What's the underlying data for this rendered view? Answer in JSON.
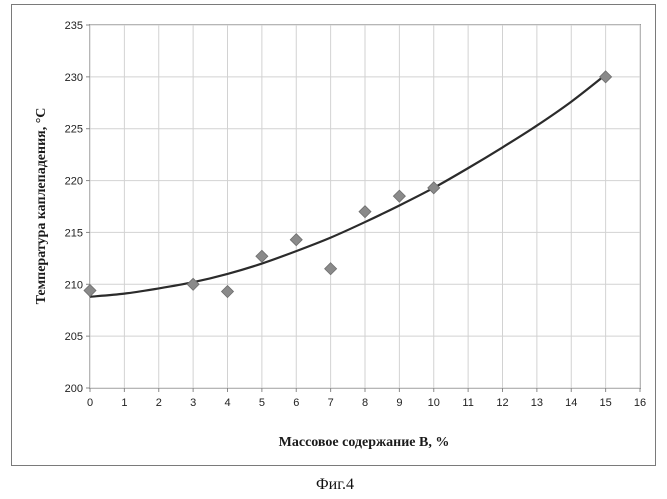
{
  "caption": "Фиг.4",
  "chart_data": {
    "type": "scatter",
    "xlabel": "Массовое содержание  B, %",
    "ylabel": "Температура каплепадения, °C",
    "xlim": [
      0,
      16
    ],
    "ylim": [
      200,
      235
    ],
    "x_ticks": [
      0,
      1,
      2,
      3,
      4,
      5,
      6,
      7,
      8,
      9,
      10,
      11,
      12,
      13,
      14,
      15,
      16
    ],
    "y_ticks": [
      200,
      205,
      210,
      215,
      220,
      225,
      230,
      235
    ],
    "grid": true,
    "marker": "diamond",
    "marker_color": "#8a8a8a",
    "line_color": "#2b2b2b",
    "series": [
      {
        "points": [
          {
            "x": 0,
            "y": 209.4
          },
          {
            "x": 3,
            "y": 210.0
          },
          {
            "x": 4,
            "y": 209.3
          },
          {
            "x": 5,
            "y": 212.7
          },
          {
            "x": 6,
            "y": 214.3
          },
          {
            "x": 7,
            "y": 211.5
          },
          {
            "x": 8,
            "y": 217.0
          },
          {
            "x": 9,
            "y": 218.5
          },
          {
            "x": 10,
            "y": 219.3
          },
          {
            "x": 15,
            "y": 230.0
          }
        ]
      }
    ],
    "trendline": {
      "type": "polynomial",
      "x": [
        0,
        1,
        2,
        3,
        4,
        5,
        6,
        7,
        8,
        9,
        10,
        11,
        12,
        13,
        14,
        15
      ],
      "y": [
        208.8,
        209.1,
        209.6,
        210.2,
        211.0,
        212.0,
        213.2,
        214.5,
        216.0,
        217.6,
        219.3,
        221.2,
        223.2,
        225.3,
        227.6,
        230.2
      ]
    }
  }
}
